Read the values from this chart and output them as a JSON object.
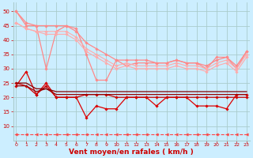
{
  "x": [
    0,
    1,
    2,
    3,
    4,
    5,
    6,
    7,
    8,
    9,
    10,
    11,
    12,
    13,
    14,
    15,
    16,
    17,
    18,
    19,
    20,
    21,
    22,
    23
  ],
  "series": [
    {
      "name": "pink_line1",
      "color": "#ff8888",
      "linewidth": 0.9,
      "marker": "D",
      "markersize": 1.8,
      "linestyle": "-",
      "values": [
        50,
        46,
        45,
        45,
        45,
        45,
        43,
        39,
        37,
        35,
        33,
        33,
        33,
        33,
        32,
        32,
        33,
        32,
        32,
        31,
        33,
        34,
        31,
        36
      ]
    },
    {
      "name": "pink_line2",
      "color": "#ff8888",
      "linewidth": 0.9,
      "marker": "D",
      "markersize": 1.8,
      "linestyle": "-",
      "values": [
        50,
        45,
        45,
        30,
        43,
        45,
        44,
        35,
        26,
        26,
        33,
        31,
        32,
        32,
        32,
        32,
        33,
        32,
        32,
        30,
        34,
        34,
        30,
        36
      ]
    },
    {
      "name": "pink_line3",
      "color": "#ffaaaa",
      "linewidth": 0.8,
      "marker": "D",
      "markersize": 1.8,
      "linestyle": "-",
      "values": [
        46,
        44,
        43,
        43,
        43,
        43,
        41,
        37,
        35,
        33,
        31,
        32,
        31,
        31,
        31,
        31,
        32,
        31,
        31,
        30,
        32,
        33,
        30,
        35
      ]
    },
    {
      "name": "pink_line4",
      "color": "#ffaaaa",
      "linewidth": 0.8,
      "marker": "D",
      "markersize": 1.8,
      "linestyle": "-",
      "values": [
        46,
        44,
        43,
        42,
        42,
        42,
        40,
        36,
        34,
        32,
        30,
        31,
        30,
        30,
        30,
        30,
        31,
        30,
        30,
        29,
        31,
        32,
        29,
        34
      ]
    },
    {
      "name": "red_line1",
      "color": "#dd0000",
      "linewidth": 0.9,
      "marker": "D",
      "markersize": 1.8,
      "linestyle": "-",
      "values": [
        24,
        29,
        21,
        25,
        20,
        20,
        20,
        13,
        17,
        16,
        16,
        20,
        20,
        20,
        17,
        20,
        20,
        20,
        17,
        17,
        17,
        16,
        21,
        21
      ]
    },
    {
      "name": "red_line2",
      "color": "#cc0000",
      "linewidth": 0.9,
      "marker": "D",
      "markersize": 1.8,
      "linestyle": "-",
      "values": [
        25,
        24,
        21,
        24,
        20,
        20,
        20,
        21,
        21,
        21,
        20,
        20,
        20,
        20,
        20,
        20,
        20,
        20,
        20,
        20,
        20,
        20,
        20,
        20
      ]
    },
    {
      "name": "dark_red_line1",
      "color": "#990000",
      "linewidth": 0.9,
      "marker": null,
      "markersize": 0,
      "linestyle": "-",
      "values": [
        24,
        24,
        22,
        23,
        21,
        21,
        21,
        21,
        21,
        21,
        21,
        21,
        21,
        21,
        21,
        21,
        21,
        21,
        21,
        21,
        21,
        21,
        21,
        21
      ]
    },
    {
      "name": "dark_red_line2",
      "color": "#880000",
      "linewidth": 0.9,
      "marker": null,
      "markersize": 0,
      "linestyle": "-",
      "values": [
        25,
        25,
        23,
        23,
        22,
        22,
        22,
        22,
        22,
        22,
        22,
        22,
        22,
        22,
        22,
        22,
        22,
        22,
        22,
        22,
        22,
        22,
        22,
        22
      ]
    },
    {
      "name": "dashed_bottom",
      "color": "#ff4444",
      "linewidth": 0.8,
      "marker": "<",
      "markersize": 2.5,
      "linestyle": "--",
      "values": [
        7,
        7,
        7,
        7,
        7,
        7,
        7,
        7,
        7,
        7,
        7,
        7,
        7,
        7,
        7,
        7,
        7,
        7,
        7,
        7,
        7,
        7,
        7,
        7
      ]
    }
  ],
  "xlim": [
    -0.3,
    23.3
  ],
  "ylim": [
    5,
    53
  ],
  "yticks": [
    10,
    15,
    20,
    25,
    30,
    35,
    40,
    45,
    50
  ],
  "xticks": [
    0,
    1,
    2,
    3,
    4,
    5,
    6,
    7,
    8,
    9,
    10,
    11,
    12,
    13,
    14,
    15,
    16,
    17,
    18,
    19,
    20,
    21,
    22,
    23
  ],
  "xlabel": "Vent moyen/en rafales ( km/h )",
  "background_color": "#cceeff",
  "grid_color": "#aacccc",
  "tick_color": "#cc0000",
  "xlabel_color": "#cc0000"
}
